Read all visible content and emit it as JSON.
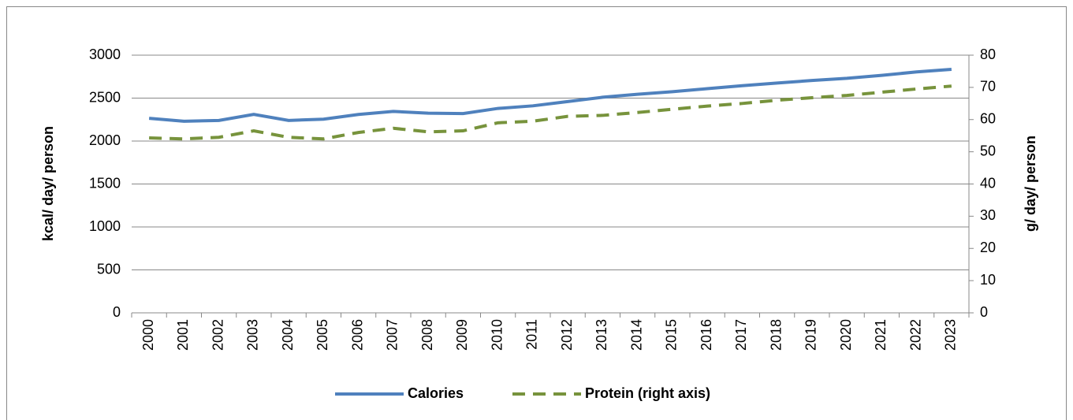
{
  "chart_data": {
    "type": "line",
    "categories": [
      "2000",
      "2001",
      "2002",
      "2003",
      "2004",
      "2005",
      "2006",
      "2007",
      "2008",
      "2009",
      "2010",
      "2011",
      "2012",
      "2013",
      "2014",
      "2015",
      "2016",
      "2017",
      "2018",
      "2019",
      "2020",
      "2021",
      "2022",
      "2023"
    ],
    "series": [
      {
        "name": "Calories",
        "color": "#4f81bd",
        "style": "solid",
        "values": [
          2265,
          2230,
          2240,
          2310,
          2240,
          2255,
          2310,
          2345,
          2325,
          2320,
          2380,
          2410,
          2460,
          2510,
          2545,
          2575,
          2610,
          2645,
          2675,
          2705,
          2730,
          2765,
          2805,
          2835
        ]
      },
      {
        "name": "Protein (right axis)",
        "color": "#77933c",
        "style": "dashed",
        "axis": "y2",
        "values": [
          54.3,
          54.0,
          54.5,
          56.5,
          54.5,
          54.0,
          56.0,
          57.3,
          56.2,
          56.5,
          59.0,
          59.5,
          61.0,
          61.3,
          62.2,
          63.2,
          64.2,
          65.0,
          66.0,
          66.8,
          67.5,
          68.5,
          69.5,
          70.4
        ]
      }
    ],
    "ylabel": "kcal/ day/ person",
    "y2label": "g/ day/ person",
    "ylim": [
      0,
      3000
    ],
    "yticks": [
      0,
      500,
      1000,
      1500,
      2000,
      2500,
      3000
    ],
    "y2lim": [
      0,
      80
    ],
    "y2ticks": [
      0,
      10,
      20,
      30,
      40,
      50,
      60,
      70,
      80
    ],
    "grid": true,
    "legend": "bottom"
  }
}
